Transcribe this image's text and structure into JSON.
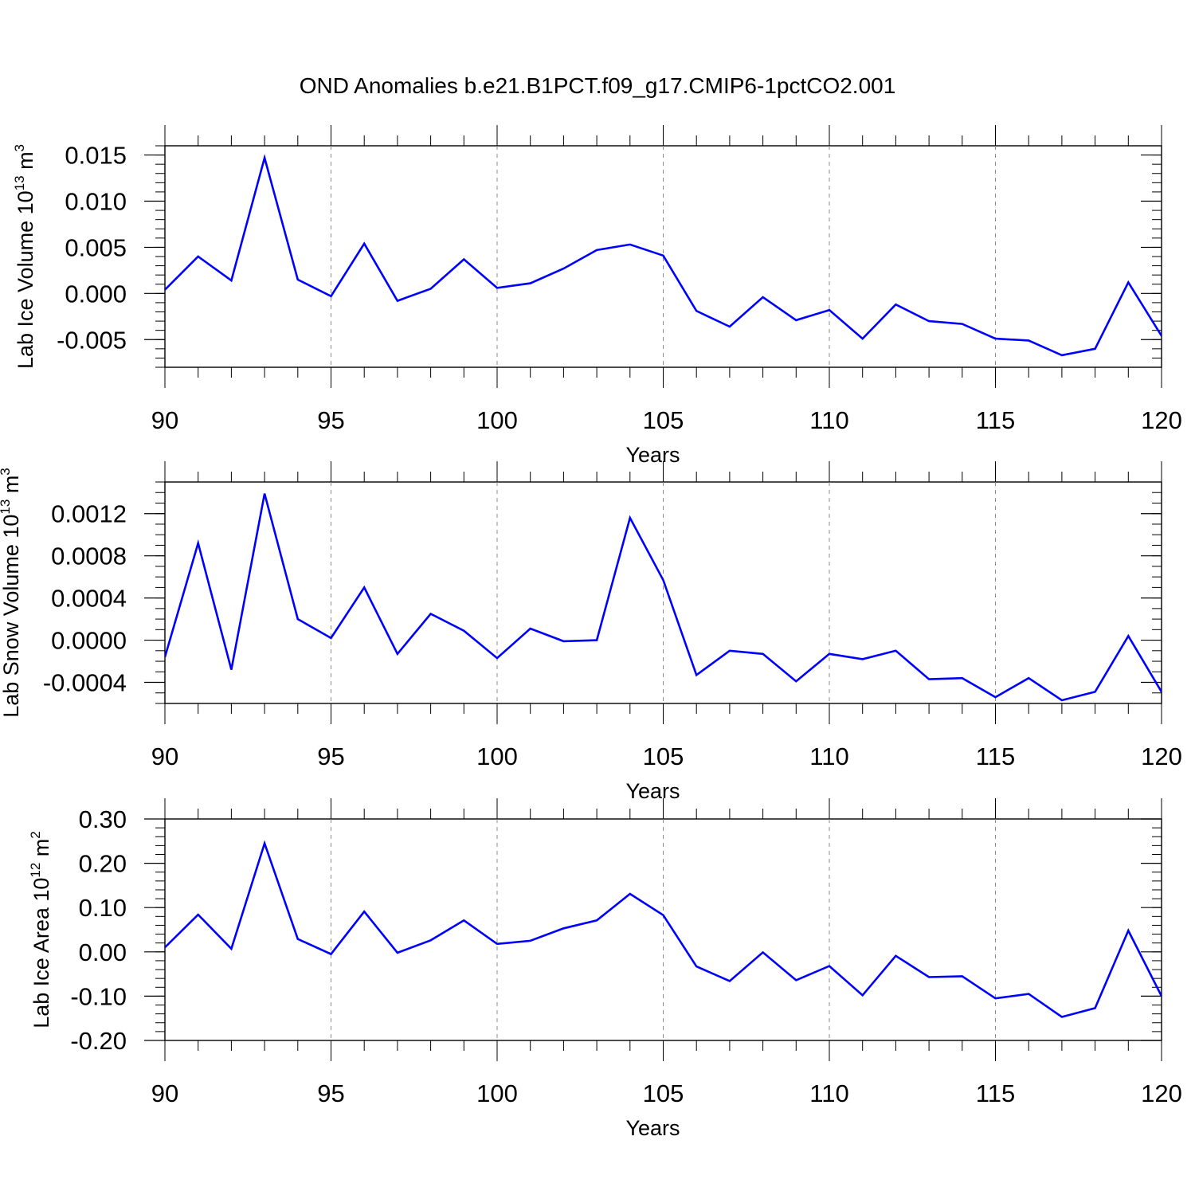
{
  "figure": {
    "title": "OND Anomalies b.e21.B1PCT.f09_g17.CMIP6-1pctCO2.001"
  },
  "colors": {
    "series": "#0000ff",
    "axis": "#000000",
    "gridline": "#8c8c8c"
  },
  "chart_data": [
    {
      "type": "line",
      "ylabel": "Lab Ice Volume 10",
      "ylabel_sup1": "13",
      "ylabel_mid": " m",
      "ylabel_sup2": "3",
      "xlabel": "Years",
      "xlim": [
        90,
        120
      ],
      "ylim": [
        -0.008,
        0.016
      ],
      "xticks": [
        90,
        95,
        100,
        105,
        110,
        115,
        120
      ],
      "xtick_labels": [
        "90",
        "95",
        "100",
        "105",
        "110",
        "115",
        "120"
      ],
      "yticks": [
        -0.005,
        0.0,
        0.005,
        0.01,
        0.015
      ],
      "ytick_labels": [
        "-0.005",
        "0.000",
        "0.005",
        "0.010",
        "0.015"
      ],
      "y_minor_step": 0.001,
      "grid": "x-dashed",
      "x": [
        90,
        91,
        92,
        93,
        94,
        95,
        96,
        97,
        98,
        99,
        100,
        101,
        102,
        103,
        104,
        105,
        106,
        107,
        108,
        109,
        110,
        111,
        112,
        113,
        114,
        115,
        116,
        117,
        118,
        119,
        120
      ],
      "y": [
        0.0004,
        0.004,
        0.0014,
        0.0147,
        0.0015,
        -0.0003,
        0.0054,
        -0.0008,
        0.0005,
        0.0037,
        0.0006,
        0.0011,
        0.0027,
        0.0047,
        0.0053,
        0.0041,
        -0.0019,
        -0.0036,
        -0.0004,
        -0.0029,
        -0.0018,
        -0.0049,
        -0.0012,
        -0.003,
        -0.0033,
        -0.0049,
        -0.0051,
        -0.0067,
        -0.006,
        0.0012,
        -0.0046
      ]
    },
    {
      "type": "line",
      "ylabel": "Lab Snow Volume 10",
      "ylabel_sup1": "13",
      "ylabel_mid": " m",
      "ylabel_sup2": "3",
      "xlabel": "Years",
      "xlim": [
        90,
        120
      ],
      "ylim": [
        -0.0006,
        0.0015
      ],
      "xticks": [
        90,
        95,
        100,
        105,
        110,
        115,
        120
      ],
      "xtick_labels": [
        "90",
        "95",
        "100",
        "105",
        "110",
        "115",
        "120"
      ],
      "yticks": [
        -0.0004,
        0.0,
        0.0004,
        0.0008,
        0.0012
      ],
      "ytick_labels": [
        "-0.0004",
        "0.0000",
        "0.0004",
        "0.0008",
        "0.0012"
      ],
      "y_minor_step": 0.0001,
      "grid": "x-dashed",
      "x": [
        90,
        91,
        92,
        93,
        94,
        95,
        96,
        97,
        98,
        99,
        100,
        101,
        102,
        103,
        104,
        105,
        106,
        107,
        108,
        109,
        110,
        111,
        112,
        113,
        114,
        115,
        116,
        117,
        118,
        119,
        120
      ],
      "y": [
        -0.00016,
        0.00092,
        -0.00028,
        0.00139,
        0.0002,
        2e-05,
        0.0005,
        -0.00013,
        0.00025,
        9e-05,
        -0.00017,
        0.00011,
        -1e-05,
        0.0,
        0.00116,
        0.00057,
        -0.00033,
        -0.0001,
        -0.00013,
        -0.00039,
        -0.00013,
        -0.00018,
        -0.0001,
        -0.00037,
        -0.00036,
        -0.00054,
        -0.00036,
        -0.00057,
        -0.00049,
        4e-05,
        -0.00049
      ]
    },
    {
      "type": "line",
      "ylabel": "Lab Ice Area 10",
      "ylabel_sup1": "12",
      "ylabel_mid": " m",
      "ylabel_sup2": "2",
      "xlabel": "Years",
      "xlim": [
        90,
        120
      ],
      "ylim": [
        -0.2,
        0.3
      ],
      "xticks": [
        90,
        95,
        100,
        105,
        110,
        115,
        120
      ],
      "xtick_labels": [
        "90",
        "95",
        "100",
        "105",
        "110",
        "115",
        "120"
      ],
      "yticks": [
        -0.2,
        -0.1,
        0.0,
        0.1,
        0.2,
        0.3
      ],
      "ytick_labels": [
        "-0.20",
        "-0.10",
        "0.00",
        "0.10",
        "0.20",
        "0.30"
      ],
      "y_minor_step": 0.02,
      "grid": "x-dashed",
      "x": [
        90,
        91,
        92,
        93,
        94,
        95,
        96,
        97,
        98,
        99,
        100,
        101,
        102,
        103,
        104,
        105,
        106,
        107,
        108,
        109,
        110,
        111,
        112,
        113,
        114,
        115,
        116,
        117,
        118,
        119,
        120
      ],
      "y": [
        0.01,
        0.084,
        0.007,
        0.245,
        0.029,
        -0.005,
        0.091,
        -0.002,
        0.026,
        0.071,
        0.018,
        0.025,
        0.053,
        0.071,
        0.131,
        0.083,
        -0.033,
        -0.066,
        -0.001,
        -0.064,
        -0.032,
        -0.098,
        -0.009,
        -0.057,
        -0.055,
        -0.105,
        -0.095,
        -0.147,
        -0.127,
        0.048,
        -0.1
      ]
    }
  ]
}
